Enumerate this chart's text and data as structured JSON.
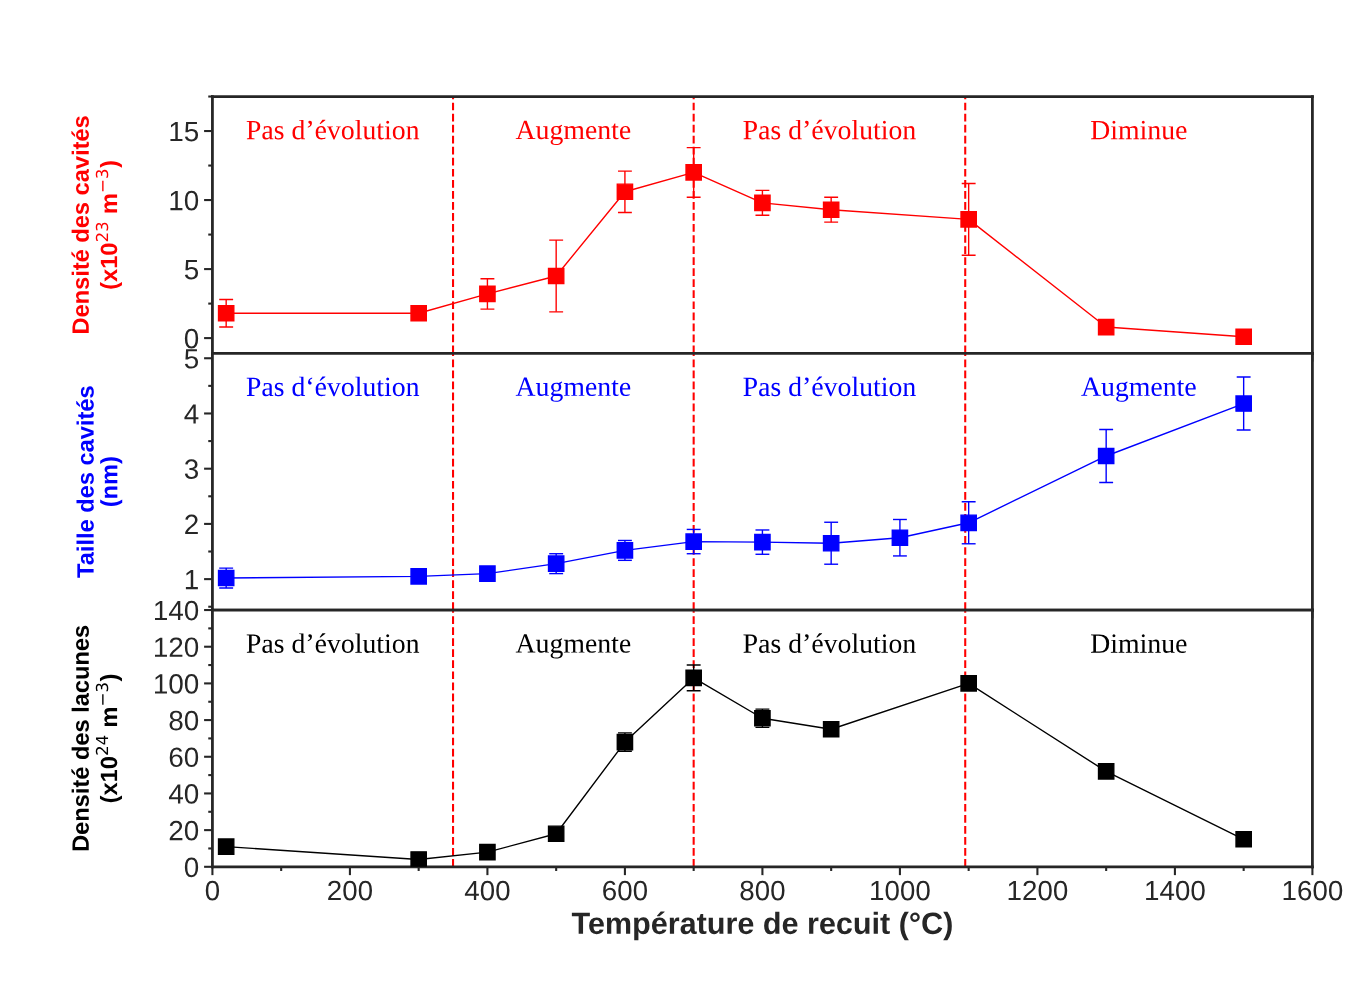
{
  "chart_data": [
    {
      "type": "line",
      "ylabel": "Densité des cavités\n(x10$^{23}$ m$^{−3}$)",
      "x": [
        20,
        300,
        400,
        500,
        600,
        700,
        800,
        900,
        1100,
        1300,
        1500
      ],
      "xlim": [
        0,
        1600
      ],
      "ylim": [
        -1.1,
        17.5
      ],
      "yticks": [
        0,
        5,
        10,
        15
      ],
      "tick_labels": "y",
      "marker": "square",
      "line_style": "solid",
      "grid": false,
      "legend": false,
      "series": [
        {
          "color": "#ff0000",
          "values": [
            1.8,
            1.8,
            3.2,
            4.5,
            10.6,
            12.0,
            9.8,
            9.3,
            8.6,
            0.8,
            0.1
          ],
          "errors": [
            1.0,
            null,
            1.1,
            2.6,
            1.5,
            1.8,
            0.9,
            0.9,
            2.6,
            null,
            null
          ]
        }
      ],
      "annotations": [
        "Pas d’évolution",
        "Augmente",
        "Pas d’évolution",
        "Diminue"
      ],
      "ref_lines": [
        {
          "axis": "x",
          "value": 350,
          "color": "#ff0000",
          "line_style": "dashed"
        },
        {
          "axis": "x",
          "value": 700,
          "color": "#ff0000",
          "line_style": "dashed"
        },
        {
          "axis": "x",
          "value": 1095,
          "color": "#ff0000",
          "line_style": "dashed"
        }
      ]
    },
    {
      "type": "line",
      "ylabel": "Taille des cavités\n(nm)",
      "x": [
        20,
        300,
        400,
        500,
        600,
        700,
        800,
        900,
        1000,
        1100,
        1300,
        1500
      ],
      "xlim": [
        0,
        1600
      ],
      "ylim": [
        0.44,
        5.09
      ],
      "yticks": [
        1,
        2,
        3,
        4,
        5
      ],
      "tick_labels": "y",
      "marker": "square",
      "line_style": "solid",
      "grid": false,
      "legend": false,
      "series": [
        {
          "color": "#0000ff",
          "values": [
            1.02,
            1.05,
            1.1,
            1.28,
            1.52,
            1.68,
            1.67,
            1.65,
            1.75,
            2.02,
            3.23,
            4.18
          ],
          "errors": [
            0.18,
            null,
            null,
            0.18,
            0.18,
            0.22,
            0.22,
            0.38,
            0.33,
            0.38,
            0.48,
            0.48
          ]
        }
      ],
      "annotations": [
        "Pas d‘évolution",
        "Augmente",
        "Pas d’évolution",
        "Augmente"
      ],
      "ref_lines": [
        {
          "axis": "x",
          "value": 350,
          "color": "#ff0000",
          "line_style": "dashed"
        },
        {
          "axis": "x",
          "value": 700,
          "color": "#ff0000",
          "line_style": "dashed"
        },
        {
          "axis": "x",
          "value": 1095,
          "color": "#ff0000",
          "line_style": "dashed"
        }
      ]
    },
    {
      "type": "line",
      "xlabel": "Température de recuit (°C)",
      "ylabel": "Densité des lacunes\n(x10$^{24}$ m$^{−3}$)",
      "x": [
        20,
        300,
        400,
        500,
        600,
        700,
        800,
        900,
        1100,
        1300,
        1500
      ],
      "xlim": [
        0,
        1600
      ],
      "xticks": [
        0,
        200,
        400,
        600,
        800,
        1000,
        1200,
        1400,
        1600
      ],
      "ylim": [
        0,
        140
      ],
      "yticks": [
        0,
        20,
        40,
        60,
        80,
        100,
        120,
        140
      ],
      "marker": "square",
      "line_style": "solid",
      "grid": false,
      "legend": false,
      "series": [
        {
          "color": "#000000",
          "values": [
            11,
            4,
            8,
            18,
            68,
            103,
            81,
            75,
            100,
            52,
            15
          ],
          "errors": [
            null,
            null,
            null,
            null,
            5,
            7,
            5,
            null,
            null,
            null,
            null
          ]
        }
      ],
      "annotations": [
        "Pas d’évolution",
        "Augmente",
        "Pas d’évolution",
        "Diminue"
      ],
      "ref_lines": [
        {
          "axis": "x",
          "value": 350,
          "color": "#ff0000",
          "line_style": "dashed"
        },
        {
          "axis": "x",
          "value": 700,
          "color": "#ff0000",
          "line_style": "dashed"
        },
        {
          "axis": "x",
          "value": 1095,
          "color": "#ff0000",
          "line_style": "dashed"
        }
      ]
    }
  ]
}
